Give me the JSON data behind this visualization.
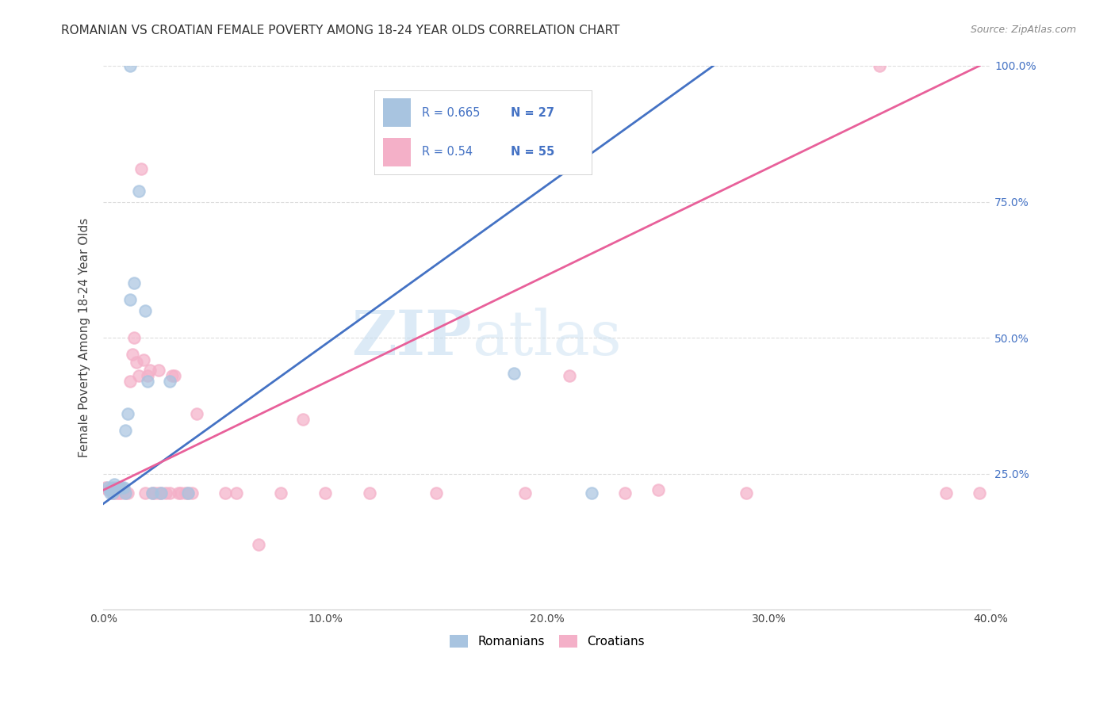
{
  "title": "ROMANIAN VS CROATIAN FEMALE POVERTY AMONG 18-24 YEAR OLDS CORRELATION CHART",
  "source": "Source: ZipAtlas.com",
  "ylabel": "Female Poverty Among 18-24 Year Olds",
  "xlim": [
    0.0,
    0.4
  ],
  "ylim": [
    0.0,
    1.0
  ],
  "xticks": [
    0.0,
    0.05,
    0.1,
    0.15,
    0.2,
    0.25,
    0.3,
    0.35,
    0.4
  ],
  "xticklabels": [
    "0.0%",
    "",
    "10.0%",
    "",
    "20.0%",
    "",
    "30.0%",
    "",
    "40.0%"
  ],
  "yticks": [
    0.0,
    0.25,
    0.5,
    0.75,
    1.0
  ],
  "yticklabels_right": [
    "",
    "25.0%",
    "50.0%",
    "75.0%",
    "100.0%"
  ],
  "romanian_R": 0.665,
  "romanian_N": 27,
  "croatian_R": 0.54,
  "croatian_N": 55,
  "romanian_color": "#a8c4e0",
  "croatian_color": "#f4b0c8",
  "romanian_line_color": "#4472c4",
  "croatian_line_color": "#e8609a",
  "legend_color": "#4472c4",
  "watermark_zip": "ZIP",
  "watermark_atlas": "atlas",
  "title_fontsize": 11,
  "axis_label_fontsize": 11,
  "tick_fontsize": 10,
  "romanian_x": [
    0.002,
    0.003,
    0.003,
    0.004,
    0.004,
    0.005,
    0.005,
    0.006,
    0.007,
    0.008,
    0.009,
    0.01,
    0.01,
    0.011,
    0.012,
    0.014,
    0.016,
    0.019,
    0.02,
    0.022,
    0.026,
    0.03,
    0.038,
    0.16,
    0.185,
    0.22,
    0.012
  ],
  "romanian_y": [
    0.225,
    0.22,
    0.215,
    0.225,
    0.215,
    0.23,
    0.22,
    0.225,
    0.225,
    0.225,
    0.225,
    0.33,
    0.215,
    0.36,
    0.57,
    0.6,
    0.77,
    0.55,
    0.42,
    0.215,
    0.215,
    0.42,
    0.215,
    0.82,
    0.435,
    0.215,
    1.0
  ],
  "croatian_x": [
    0.001,
    0.002,
    0.003,
    0.004,
    0.004,
    0.005,
    0.005,
    0.006,
    0.007,
    0.008,
    0.009,
    0.01,
    0.011,
    0.012,
    0.013,
    0.014,
    0.015,
    0.016,
    0.017,
    0.018,
    0.019,
    0.02,
    0.021,
    0.022,
    0.023,
    0.025,
    0.025,
    0.026,
    0.028,
    0.03,
    0.031,
    0.032,
    0.034,
    0.035,
    0.037,
    0.038,
    0.04,
    0.042,
    0.055,
    0.06,
    0.07,
    0.08,
    0.09,
    0.1,
    0.12,
    0.15,
    0.16,
    0.19,
    0.21,
    0.235,
    0.25,
    0.29,
    0.35,
    0.38,
    0.395
  ],
  "croatian_y": [
    0.225,
    0.22,
    0.22,
    0.22,
    0.215,
    0.215,
    0.22,
    0.215,
    0.215,
    0.215,
    0.22,
    0.215,
    0.215,
    0.42,
    0.47,
    0.5,
    0.455,
    0.43,
    0.81,
    0.46,
    0.215,
    0.43,
    0.44,
    0.215,
    0.215,
    0.44,
    0.215,
    0.215,
    0.215,
    0.215,
    0.43,
    0.43,
    0.215,
    0.215,
    0.215,
    0.215,
    0.215,
    0.36,
    0.215,
    0.215,
    0.12,
    0.215,
    0.35,
    0.215,
    0.215,
    0.215,
    0.86,
    0.215,
    0.43,
    0.215,
    0.22,
    0.215,
    1.0,
    0.215,
    0.215
  ],
  "ro_line_x0": 0.0,
  "ro_line_y0": 0.195,
  "ro_line_x1": 0.275,
  "ro_line_y1": 1.0,
  "cr_line_x0": 0.0,
  "cr_line_y0": 0.22,
  "cr_line_x1": 0.395,
  "cr_line_y1": 1.0,
  "marker_size": 110,
  "grid_color": "#dddddd",
  "background_color": "#ffffff"
}
